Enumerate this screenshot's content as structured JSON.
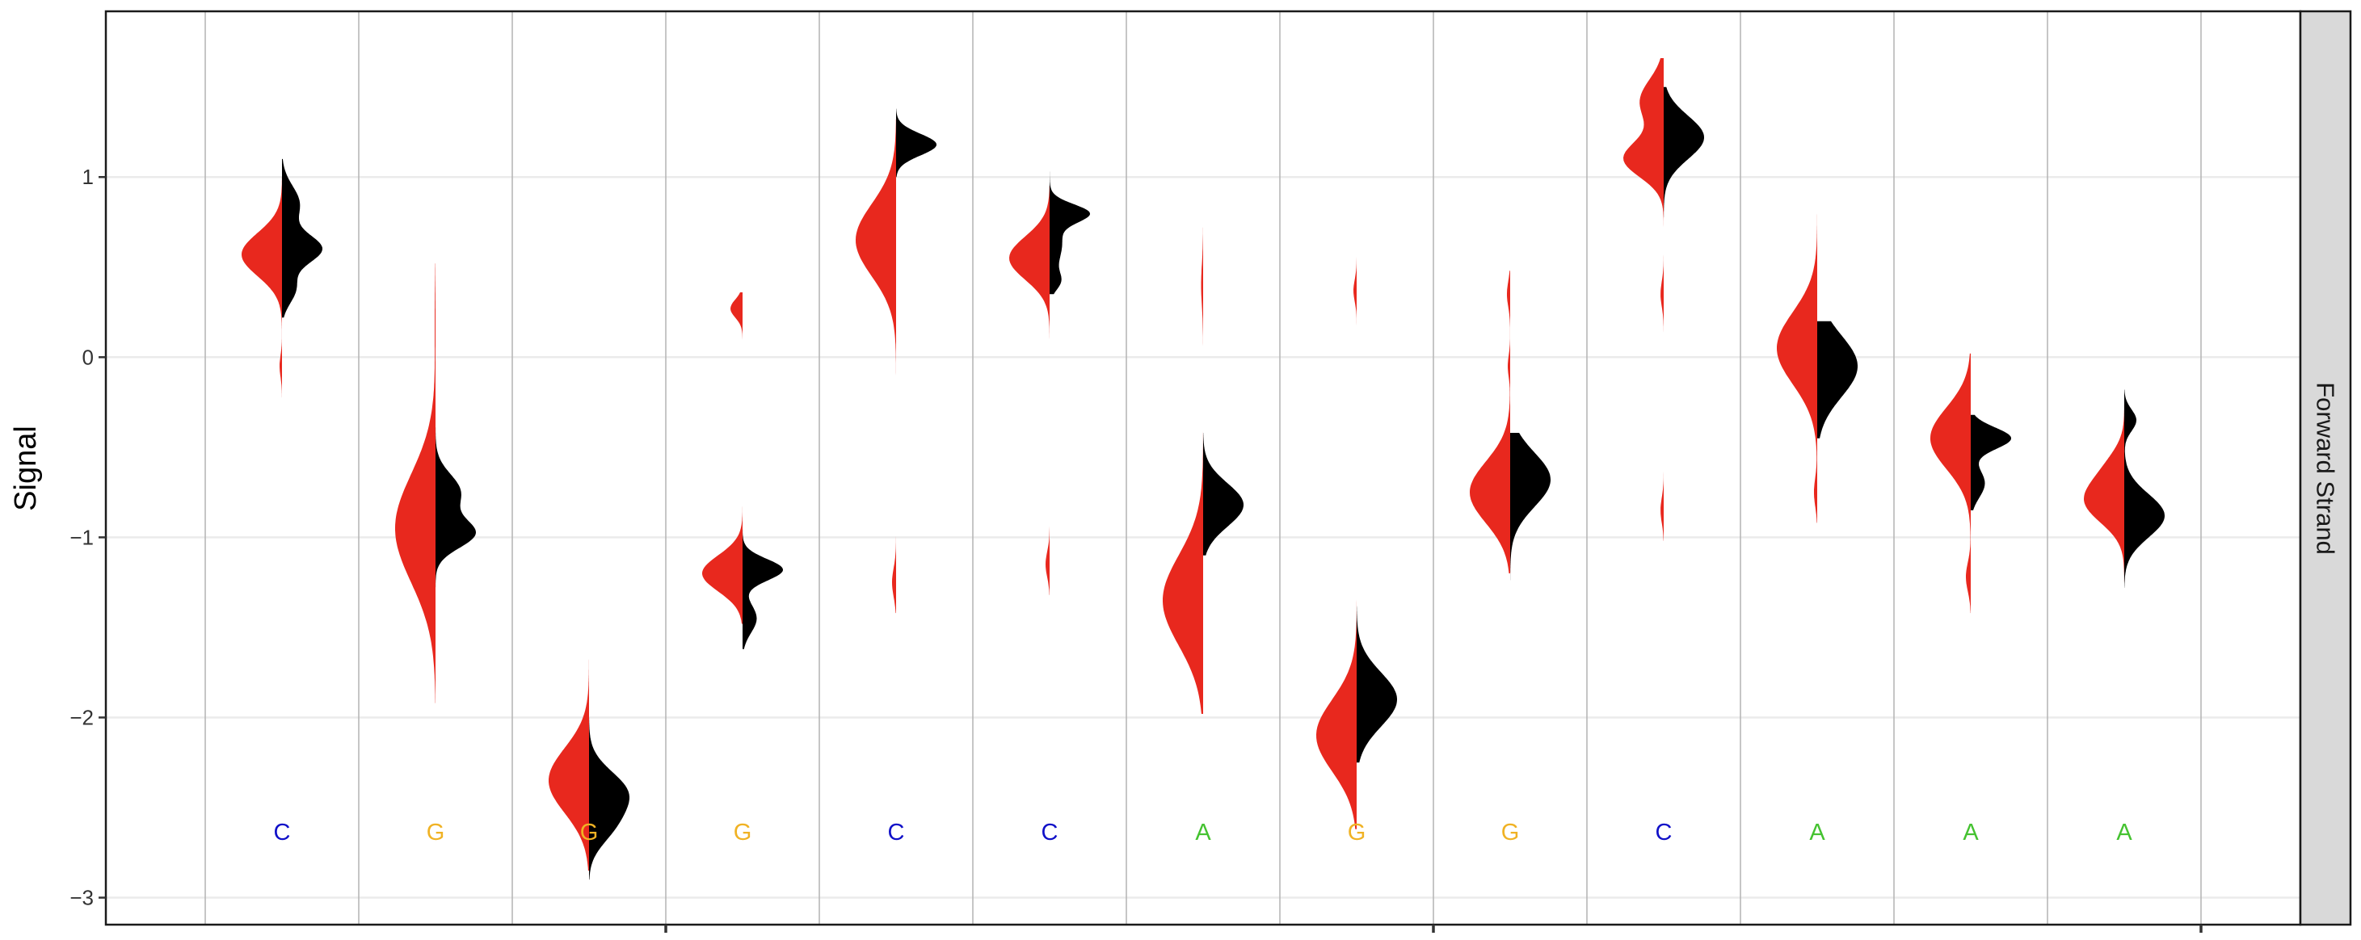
{
  "chart_data": {
    "type": "split-violin",
    "title": "",
    "xlabel": "",
    "ylabel": "Signal",
    "ylim": [
      -3.15,
      1.92
    ],
    "yticks": [
      -3,
      -2,
      -1,
      0,
      1
    ],
    "ytick_labels": [
      "−3",
      "−2",
      "−1",
      "0",
      "1"
    ],
    "grid": true,
    "facet_label": "Forward Strand",
    "base_label_y": -2.64,
    "bases": [
      {
        "base": "C",
        "color": "#1010c8"
      },
      {
        "base": "G",
        "color": "#f0b224"
      },
      {
        "base": "G",
        "color": "#f0b224"
      },
      {
        "base": "G",
        "color": "#f0b224"
      },
      {
        "base": "C",
        "color": "#1010c8"
      },
      {
        "base": "C",
        "color": "#1010c8"
      },
      {
        "base": "A",
        "color": "#44c230"
      },
      {
        "base": "G",
        "color": "#f0b224"
      },
      {
        "base": "G",
        "color": "#f0b224"
      },
      {
        "base": "C",
        "color": "#1010c8"
      },
      {
        "base": "A",
        "color": "#44c230"
      },
      {
        "base": "A",
        "color": "#44c230"
      },
      {
        "base": "A",
        "color": "#44c230"
      }
    ],
    "series": [
      {
        "side": "left",
        "color": "#e8281e",
        "densities": [
          {
            "range": [
              -0.25,
              1.0
            ],
            "modes": [
              [
                0.57,
                0.12,
                1.0
              ],
              [
                -0.05,
                0.06,
                0.06
              ]
            ]
          },
          {
            "range": [
              -1.92,
              0.52
            ],
            "modes": [
              [
                -0.95,
                0.3,
                1.0
              ],
              [
                0.2,
                0.2,
                0.02
              ]
            ]
          },
          {
            "range": [
              -2.85,
              -1.58
            ],
            "modes": [
              [
                -2.35,
                0.18,
                1.0
              ]
            ]
          },
          {
            "range": [
              -1.48,
              0.36
            ],
            "modes": [
              [
                -1.2,
                0.1,
                1.0
              ],
              [
                0.27,
                0.05,
                0.3
              ]
            ]
          },
          {
            "range": [
              -1.42,
              1.32
            ],
            "modes": [
              [
                0.65,
                0.2,
                1.0
              ],
              [
                -1.25,
                0.08,
                0.1
              ]
            ]
          },
          {
            "range": [
              -1.32,
              0.95
            ],
            "modes": [
              [
                0.55,
                0.12,
                1.0
              ],
              [
                -1.15,
                0.07,
                0.1
              ]
            ]
          },
          {
            "range": [
              -1.98,
              0.72
            ],
            "modes": [
              [
                -1.35,
                0.25,
                1.0
              ],
              [
                0.4,
                0.12,
                0.05
              ]
            ]
          },
          {
            "range": [
              -2.62,
              0.62
            ],
            "modes": [
              [
                -2.1,
                0.2,
                1.0
              ],
              [
                0.37,
                0.06,
                0.08
              ]
            ]
          },
          {
            "range": [
              -1.2,
              0.48
            ],
            "modes": [
              [
                -0.75,
                0.17,
                1.0
              ],
              [
                0.35,
                0.07,
                0.08
              ],
              [
                -0.05,
                0.06,
                0.06
              ]
            ]
          },
          {
            "range": [
              -1.02,
              1.66
            ],
            "modes": [
              [
                1.1,
                0.1,
                1.0
              ],
              [
                1.42,
                0.12,
                0.6
              ],
              [
                0.35,
                0.07,
                0.08
              ],
              [
                -0.85,
                0.07,
                0.08
              ]
            ]
          },
          {
            "range": [
              -0.92,
              0.82
            ],
            "modes": [
              [
                0.05,
                0.2,
                1.0
              ],
              [
                -0.75,
                0.08,
                0.08
              ]
            ]
          },
          {
            "range": [
              -1.42,
              0.02
            ],
            "modes": [
              [
                -0.45,
                0.17,
                1.0
              ],
              [
                -1.22,
                0.08,
                0.12
              ]
            ]
          },
          {
            "range": [
              -1.48,
              -0.22
            ],
            "modes": [
              [
                -0.8,
                0.12,
                1.0
              ],
              [
                -0.6,
                0.1,
                0.3
              ]
            ]
          }
        ]
      },
      {
        "side": "right",
        "color": "#000000",
        "densities": [
          {
            "range": [
              0.22,
              1.1
            ],
            "modes": [
              [
                0.6,
                0.08,
                1.0
              ],
              [
                0.85,
                0.1,
                0.45
              ],
              [
                0.38,
                0.08,
                0.35
              ]
            ]
          },
          {
            "range": [
              -1.38,
              -0.38
            ],
            "modes": [
              [
                -0.98,
                0.08,
                1.0
              ],
              [
                -0.75,
                0.1,
                0.65
              ]
            ]
          },
          {
            "range": [
              -2.9,
              -2.0
            ],
            "modes": [
              [
                -2.42,
                0.12,
                1.0
              ],
              [
                -2.62,
                0.1,
                0.45
              ]
            ]
          },
          {
            "range": [
              -1.62,
              -0.95
            ],
            "modes": [
              [
                -1.18,
                0.06,
                1.0
              ],
              [
                -1.45,
                0.08,
                0.35
              ]
            ]
          },
          {
            "range": [
              1.0,
              1.38
            ],
            "modes": [
              [
                1.18,
                0.06,
                1.0
              ]
            ]
          },
          {
            "range": [
              0.35,
              1.03
            ],
            "modes": [
              [
                0.8,
                0.05,
                1.0
              ],
              [
                0.63,
                0.12,
                0.35
              ],
              [
                0.42,
                0.05,
                0.25
              ]
            ]
          },
          {
            "range": [
              -1.1,
              -0.42
            ],
            "modes": [
              [
                -0.82,
                0.12,
                1.0
              ]
            ]
          },
          {
            "range": [
              -2.25,
              -1.38
            ],
            "modes": [
              [
                -1.9,
                0.15,
                1.0
              ]
            ]
          },
          {
            "range": [
              -1.32,
              -0.42
            ],
            "modes": [
              [
                -0.68,
                0.15,
                1.0
              ]
            ]
          },
          {
            "range": [
              0.72,
              1.5
            ],
            "modes": [
              [
                1.22,
                0.12,
                1.0
              ]
            ]
          },
          {
            "range": [
              -0.45,
              0.2
            ],
            "modes": [
              [
                -0.05,
                0.17,
                1.0
              ]
            ]
          },
          {
            "range": [
              -0.85,
              -0.32
            ],
            "modes": [
              [
                -0.45,
                0.06,
                1.0
              ],
              [
                -0.7,
                0.08,
                0.35
              ]
            ]
          },
          {
            "range": [
              -1.28,
              -0.18
            ],
            "modes": [
              [
                -0.88,
                0.12,
                1.0
              ],
              [
                -0.35,
                0.06,
                0.3
              ]
            ]
          }
        ]
      }
    ]
  }
}
